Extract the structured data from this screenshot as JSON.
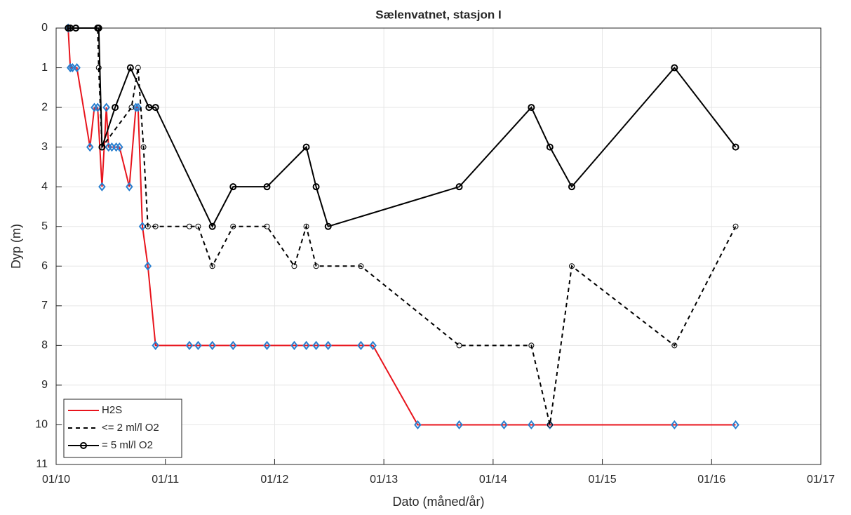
{
  "chart_data": {
    "type": "line",
    "title": "Sælenvatnet, stasjon I",
    "x_label": "Dato (måned/år)",
    "y_label": "Dyp (m)",
    "xlim": [
      2010,
      2017
    ],
    "xticks": [
      {
        "value": 2010,
        "label": "01/10"
      },
      {
        "value": 2011,
        "label": "01/11"
      },
      {
        "value": 2012,
        "label": "01/12"
      },
      {
        "value": 2013,
        "label": "01/13"
      },
      {
        "value": 2014,
        "label": "01/14"
      },
      {
        "value": 2015,
        "label": "01/15"
      },
      {
        "value": 2016,
        "label": "01/16"
      },
      {
        "value": 2017,
        "label": "01/17"
      }
    ],
    "ylim": [
      0,
      11
    ],
    "y_reversed": true,
    "yticks": [
      0,
      1,
      2,
      3,
      4,
      5,
      6,
      7,
      8,
      9,
      10,
      11
    ],
    "grid": true,
    "legend": "lower-left",
    "series": [
      {
        "name": "H2S",
        "color": "#e8141c",
        "line_style": "solid",
        "marker": "diamond",
        "marker_color": "#2a7fcf",
        "x": [
          2010.11,
          2010.13,
          2010.15,
          2010.19,
          2010.31,
          2010.35,
          2010.38,
          2010.42,
          2010.46,
          2010.48,
          2010.51,
          2010.55,
          2010.58,
          2010.67,
          2010.73,
          2010.75,
          2010.79,
          2010.84,
          2010.91,
          2011.22,
          2011.3,
          2011.43,
          2011.62,
          2011.93,
          2012.18,
          2012.29,
          2012.38,
          2012.49,
          2012.79,
          2012.9,
          2013.31,
          2013.69,
          2014.1,
          2014.35,
          2014.52,
          2015.66,
          2016.22
        ],
        "values": [
          0,
          1,
          1,
          1,
          3,
          2,
          2,
          4,
          2,
          3,
          3,
          3,
          3,
          4,
          2,
          2,
          5,
          6,
          8,
          8,
          8,
          8,
          8,
          8,
          8,
          8,
          8,
          8,
          8,
          8,
          10,
          10,
          10,
          10,
          10,
          10,
          10
        ]
      },
      {
        "name": "<= 2 ml/l O2",
        "color": "#000000",
        "line_style": "dashed",
        "marker": "circle",
        "marker_color": "#000000",
        "x": [
          2010.11,
          2010.13,
          2010.18,
          2010.38,
          2010.39,
          2010.42,
          2010.69,
          2010.75,
          2010.8,
          2010.84,
          2010.91,
          2011.22,
          2011.3,
          2011.43,
          2011.62,
          2011.93,
          2012.18,
          2012.29,
          2012.38,
          2012.79,
          2013.69,
          2014.35,
          2014.52,
          2014.72,
          2015.66,
          2016.22
        ],
        "values": [
          0,
          0,
          0,
          0,
          1,
          3,
          2,
          1,
          3,
          5,
          5,
          5,
          5,
          6,
          5,
          5,
          6,
          5,
          6,
          6,
          8,
          8,
          10,
          6,
          8,
          5
        ]
      },
      {
        "name": "= 5 ml/l O2",
        "color": "#000000",
        "line_style": "solid",
        "marker": "circle",
        "marker_color": "#000000",
        "x": [
          2010.11,
          2010.13,
          2010.18,
          2010.38,
          2010.39,
          2010.42,
          2010.54,
          2010.68,
          2010.85,
          2010.91,
          2011.43,
          2011.62,
          2011.93,
          2012.29,
          2012.38,
          2012.49,
          2013.69,
          2014.35,
          2014.52,
          2014.72,
          2015.66,
          2016.22
        ],
        "values": [
          0,
          0,
          0,
          0,
          0,
          3,
          2,
          1,
          2,
          2,
          5,
          4,
          4,
          3,
          4,
          5,
          4,
          2,
          3,
          4,
          1,
          3
        ]
      }
    ]
  }
}
